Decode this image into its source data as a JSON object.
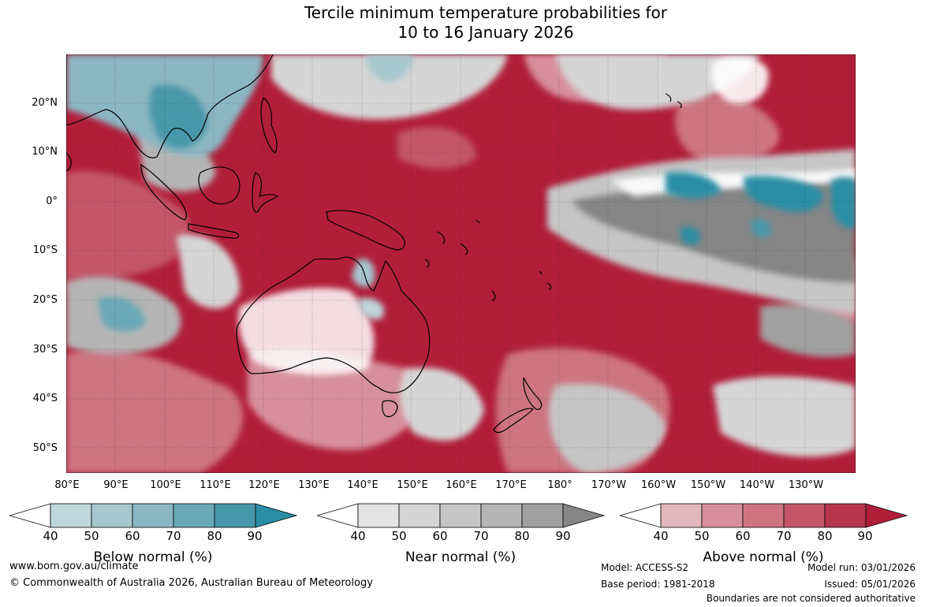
{
  "title": {
    "line1": "Tercile minimum temperature probabilities for",
    "line2": "10 to 16 January 2026"
  },
  "map": {
    "region": "Asia-Pacific / Australia",
    "latitude_labels": [
      "20°N",
      "10°N",
      "0°",
      "10°S",
      "20°S",
      "30°S",
      "40°S",
      "50°S"
    ],
    "longitude_labels": [
      "80°E",
      "90°E",
      "100°E",
      "110°E",
      "120°E",
      "130°E",
      "140°E",
      "150°E",
      "160°E",
      "170°E",
      "180°",
      "170°W",
      "160°W",
      "150°W",
      "140°W",
      "130°W"
    ]
  },
  "legends": [
    {
      "label": "Below normal (%)",
      "ticks": [
        "40",
        "50",
        "60",
        "70",
        "80",
        "90"
      ],
      "colors": [
        "#ffffff",
        "#bfd6dc",
        "#a6c7ce",
        "#8bb7c3",
        "#69a9b7",
        "#4798aa",
        "#2a8ea5"
      ]
    },
    {
      "label": "Near normal (%)",
      "ticks": [
        "40",
        "50",
        "60",
        "70",
        "80",
        "90"
      ],
      "colors": [
        "#ffffff",
        "#e4e4e4",
        "#d5d5d5",
        "#c6c6c6",
        "#b5b5b5",
        "#a0a0a0",
        "#858585"
      ]
    },
    {
      "label": "Above normal (%)",
      "ticks": [
        "40",
        "50",
        "60",
        "70",
        "80",
        "90"
      ],
      "colors": [
        "#ffffff",
        "#e2b6be",
        "#d78f9b",
        "#cd7480",
        "#c35668",
        "#b7354c",
        "#b11e3a"
      ]
    }
  ],
  "footer": {
    "url": "www.bom.gov.au/climate",
    "copyright": "© Commonwealth of Australia 2026, Australian Bureau of Meteorology",
    "model": "Model: ACCESS-S2",
    "base_period": "Base period: 1981-2018",
    "model_run": "Model run: 03/01/2026",
    "issued": "Issued: 05/01/2026",
    "disclaimer": "Boundaries are not considered authoritative"
  }
}
